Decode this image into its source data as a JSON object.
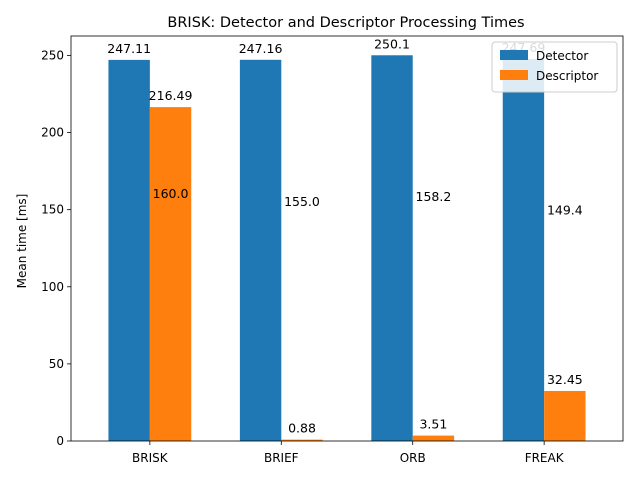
{
  "chart_data": {
    "type": "bar",
    "title": "BRISK: Detector and Descriptor Processing Times",
    "xlabel": "",
    "ylabel": "Mean time [ms]",
    "categories": [
      "BRISK",
      "BRIEF",
      "ORB",
      "FREAK"
    ],
    "series": [
      {
        "name": "Detector",
        "color": "#1f77b4",
        "values": [
          247.11,
          247.16,
          250.1,
          247.69
        ],
        "labels": [
          "247.11",
          "247.16",
          "250.1",
          "247.69"
        ]
      },
      {
        "name": "Descriptor",
        "color": "#ff7f0e",
        "values": [
          216.49,
          0.88,
          3.51,
          32.45
        ],
        "labels": [
          "216.49",
          "0.88",
          "3.51",
          "32.45"
        ]
      }
    ],
    "annotations": [
      {
        "label": "160.0",
        "value": 160.0
      },
      {
        "label": "155.0",
        "value": 155.0
      },
      {
        "label": "158.2",
        "value": 158.2
      },
      {
        "label": "149.4",
        "value": 149.4
      }
    ],
    "ylim": [
      0,
      262.6
    ],
    "yticks": [
      0,
      50,
      100,
      150,
      200,
      250
    ],
    "grid": false,
    "legend_position": "top-right"
  }
}
